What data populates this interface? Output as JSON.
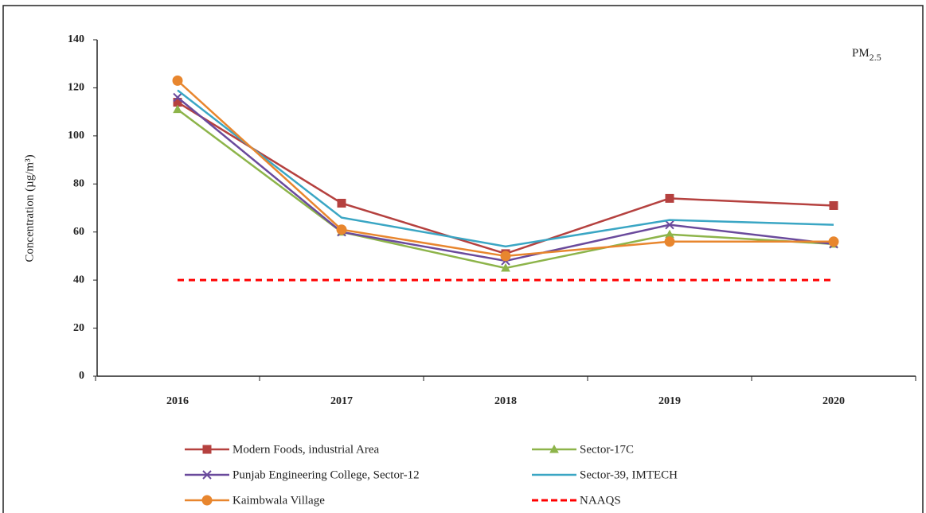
{
  "chart_data": {
    "type": "line",
    "y_label": "Concentration (µg/m³)",
    "annotation": {
      "text": "PM",
      "subscript": "2.5"
    },
    "categories": [
      "2016",
      "2017",
      "2018",
      "2019",
      "2020"
    ],
    "series": [
      {
        "name": "Modern Foods, industrial Area",
        "color": "#b5413f",
        "marker": "square",
        "values": [
          114,
          72,
          51,
          74,
          71
        ]
      },
      {
        "name": "Sector-17C",
        "color": "#8db44a",
        "marker": "triangle",
        "values": [
          111,
          60,
          45,
          59,
          55
        ]
      },
      {
        "name": "Punjab Engineering College, Sector-12",
        "color": "#6a4a9c",
        "marker": "x",
        "values": [
          116,
          60,
          48,
          63,
          55
        ]
      },
      {
        "name": "Sector-39, IMTECH",
        "color": "#3aa6c4",
        "marker": "none",
        "values": [
          119,
          66,
          54,
          65,
          63
        ]
      },
      {
        "name": "Kaimbwala Village",
        "color": "#e8862e",
        "marker": "circle",
        "values": [
          123,
          61,
          50,
          56,
          56
        ]
      },
      {
        "name": "NAAQS",
        "color": "#ff0000",
        "marker": "none",
        "dashed": true,
        "values": [
          40,
          40,
          40,
          40,
          40
        ]
      }
    ],
    "ylim": [
      0,
      140
    ],
    "yticks": [
      0,
      20,
      40,
      60,
      80,
      100,
      120,
      140
    ],
    "grid": false
  }
}
